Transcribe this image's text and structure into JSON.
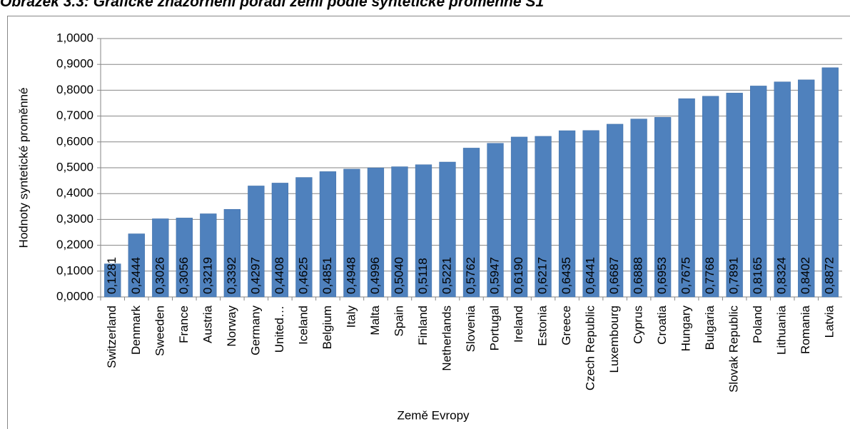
{
  "chart_data": {
    "type": "bar",
    "title": "Obrázek 3.3: Grafické znázornění pořadí zemí podle syntetické proměnné S1",
    "x_label": "Země Evropy",
    "y_label": "Hodnoty syntetické proměnné",
    "categories": [
      "Switzerland",
      "Denmark",
      "Sweeden",
      "France",
      "Austria",
      "Norway",
      "Germany",
      "United…",
      "Iceland",
      "Belgium",
      "Italy",
      "Malta",
      "Spain",
      "Finland",
      "Netherlands",
      "Slovenia",
      "Portugal",
      "Ireland",
      "Estonia",
      "Greece",
      "Czech Republic",
      "Luxembourg",
      "Cyprus",
      "Croatia",
      "Hungary",
      "Bulgaria",
      "Slovak Republic",
      "Poland",
      "Lithuania",
      "Romania",
      "Latvia"
    ],
    "values": [
      0.1281,
      0.2444,
      0.3026,
      0.3056,
      0.3219,
      0.3392,
      0.4297,
      0.4408,
      0.4625,
      0.4851,
      0.4948,
      0.4996,
      0.504,
      0.5118,
      0.5221,
      0.5762,
      0.5947,
      0.619,
      0.6217,
      0.6435,
      0.6441,
      0.6687,
      0.6888,
      0.6953,
      0.7675,
      0.7768,
      0.7891,
      0.8165,
      0.8324,
      0.8402,
      0.8872
    ],
    "value_labels": [
      "0,1281",
      "0,2444",
      "0,3026",
      "0,3056",
      "0,3219",
      "0,3392",
      "0,4297",
      "0,4408",
      "0,4625",
      "0,4851",
      "0,4948",
      "0,4996",
      "0,5040",
      "0,5118",
      "0,5221",
      "0,5762",
      "0,5947",
      "0,6190",
      "0,6217",
      "0,6435",
      "0,6441",
      "0,6687",
      "0,6888",
      "0,6953",
      "0,7675",
      "0,7768",
      "0,7891",
      "0,8165",
      "0,8324",
      "0,8402",
      "0,8872"
    ],
    "color": "#4f81bd",
    "ylim": [
      0,
      1
    ],
    "yticks": [
      {
        "value": 0,
        "label": "0,0000"
      },
      {
        "value": 0.1,
        "label": "0,1000"
      },
      {
        "value": 0.2,
        "label": "0,2000"
      },
      {
        "value": 0.3,
        "label": "0,3000"
      },
      {
        "value": 0.4,
        "label": "0,4000"
      },
      {
        "value": 0.5,
        "label": "0,5000"
      },
      {
        "value": 0.6,
        "label": "0,6000"
      },
      {
        "value": 0.7,
        "label": "0,7000"
      },
      {
        "value": 0.8,
        "label": "0,8000"
      },
      {
        "value": 0.9,
        "label": "0,9000"
      },
      {
        "value": 1,
        "label": "1,0000"
      }
    ],
    "grid": true
  }
}
